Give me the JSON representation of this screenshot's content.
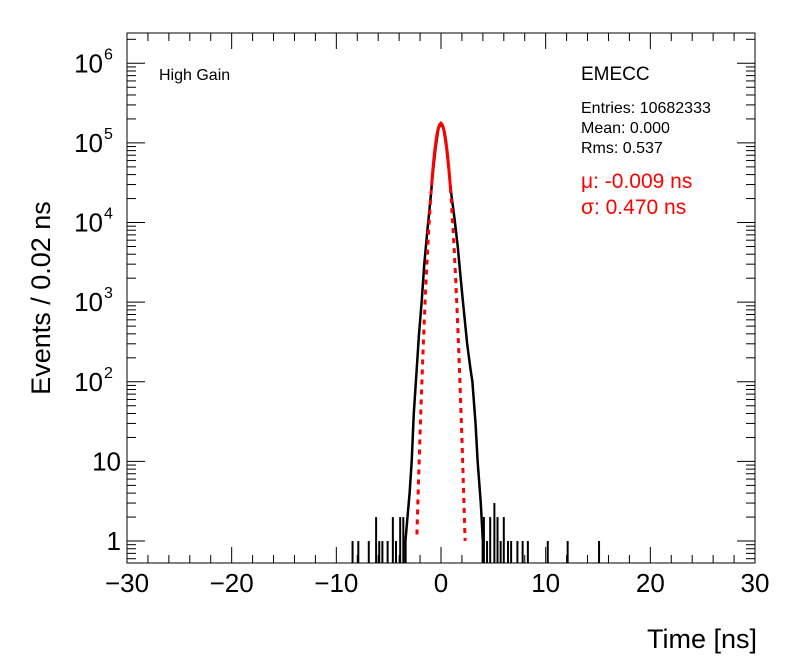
{
  "chart_data": {
    "type": "line",
    "title": "",
    "xlabel": "Time [ns]",
    "ylabel": "Events / 0.02 ns",
    "xlim": [
      -30,
      30
    ],
    "ylim": [
      0.53,
      2400000
    ],
    "yscale": "log",
    "x_ticks": [
      -30,
      -20,
      -10,
      0,
      10,
      20,
      30
    ],
    "x_tick_labels": [
      "−30",
      "−20",
      "−10",
      "0",
      "10",
      "20",
      "30"
    ],
    "y_ticks": [
      {
        "value": 1000000,
        "base": "10",
        "exp": "6"
      },
      {
        "value": 100000,
        "base": "10",
        "exp": "5"
      },
      {
        "value": 10000,
        "base": "10",
        "exp": "4"
      },
      {
        "value": 1000,
        "base": "10",
        "exp": "3"
      },
      {
        "value": 100,
        "base": "10",
        "exp": "2"
      },
      {
        "value": 10,
        "base": "10",
        "exp": ""
      },
      {
        "value": 1,
        "base": "1",
        "exp": ""
      }
    ],
    "series": [
      {
        "name": "EMECC histogram",
        "color": "#000000",
        "x": [
          -3.4,
          -3.2,
          -3.0,
          -2.8,
          -2.6,
          -2.4,
          -2.1,
          -1.85,
          -1.6,
          -1.3,
          -1.0,
          -0.75,
          -0.5,
          -0.25,
          0,
          0.25,
          0.5,
          0.75,
          1.0,
          1.3,
          1.6,
          1.85,
          2.1,
          2.5,
          2.8,
          3.0,
          3.3,
          3.5,
          3.8,
          4.0
        ],
        "y": [
          1,
          2,
          4,
          10,
          40,
          100,
          400,
          1000,
          3000,
          8000,
          20000,
          45000,
          90000,
          150000,
          175000,
          150000,
          90000,
          45000,
          22000,
          11000,
          5000,
          2200,
          1000,
          300,
          150,
          100,
          30,
          10,
          3,
          1
        ],
        "spikes": [
          [
            -8.45,
            1
          ],
          [
            -7.9,
            1
          ],
          [
            -6.9,
            1
          ],
          [
            -6.2,
            2
          ],
          [
            -5.9,
            1
          ],
          [
            -5.6,
            1
          ],
          [
            -5.1,
            1
          ],
          [
            -4.6,
            2
          ],
          [
            -4.3,
            1
          ],
          [
            -3.9,
            2
          ],
          [
            -3.6,
            2
          ],
          [
            4.1,
            2
          ],
          [
            4.4,
            1
          ],
          [
            4.7,
            2
          ],
          [
            5.1,
            3
          ],
          [
            5.4,
            2
          ],
          [
            5.7,
            1
          ],
          [
            6.0,
            2
          ],
          [
            6.4,
            1
          ],
          [
            6.7,
            1
          ],
          [
            7.3,
            1
          ],
          [
            7.8,
            1
          ],
          [
            8.3,
            1
          ],
          [
            10.2,
            1
          ],
          [
            12.1,
            1
          ],
          [
            15.1,
            1
          ]
        ]
      },
      {
        "name": "Gaussian fit",
        "color": "#ff0000",
        "function": "gaussian",
        "mu": -0.009,
        "sigma": 0.47,
        "amplitude": 175000
      }
    ],
    "annotations": {
      "gain": "High Gain",
      "detector": "EMECC",
      "entries": "Entries: 10682333",
      "mean": "Mean: 0.000",
      "rms": "Rms: 0.537",
      "mu": "μ: -0.009 ns",
      "sigma": "σ: 0.470 ns"
    },
    "fit_color": "#ff0000"
  }
}
